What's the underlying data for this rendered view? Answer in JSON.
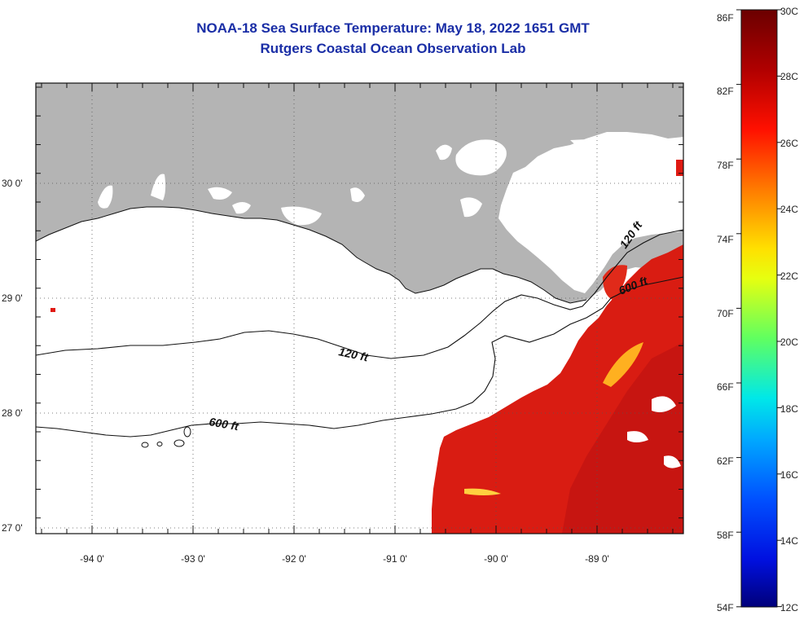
{
  "title": {
    "line1": "NOAA-18 Sea Surface Temperature:  May 18, 2022 1651 GMT",
    "line2": "Rutgers Coastal Ocean Observation Lab"
  },
  "map": {
    "lon_labels": [
      "-94 0'",
      "-93 0'",
      "-92 0'",
      "-91 0'",
      "-90 0'",
      "-89 0'"
    ],
    "lat_labels": [
      "30 0'",
      "29 0'",
      "28 0'",
      "27 0'"
    ],
    "contour_labels": {
      "c120_west": "120 ft",
      "c600_west": "600 ft",
      "c120_east": "120 ft",
      "c600_east": "600 ft"
    },
    "colors": {
      "land": "#b4b4b4",
      "ocean_nodata": "#ffffff",
      "warm_water": "#e01a12"
    }
  },
  "colorbar": {
    "f_labels": [
      "86F",
      "82F",
      "78F",
      "74F",
      "70F",
      "66F",
      "62F",
      "58F",
      "54F"
    ],
    "c_labels": [
      "30C",
      "28C",
      "26C",
      "24C",
      "22C",
      "20C",
      "18C",
      "16C",
      "14C",
      "12C"
    ]
  }
}
